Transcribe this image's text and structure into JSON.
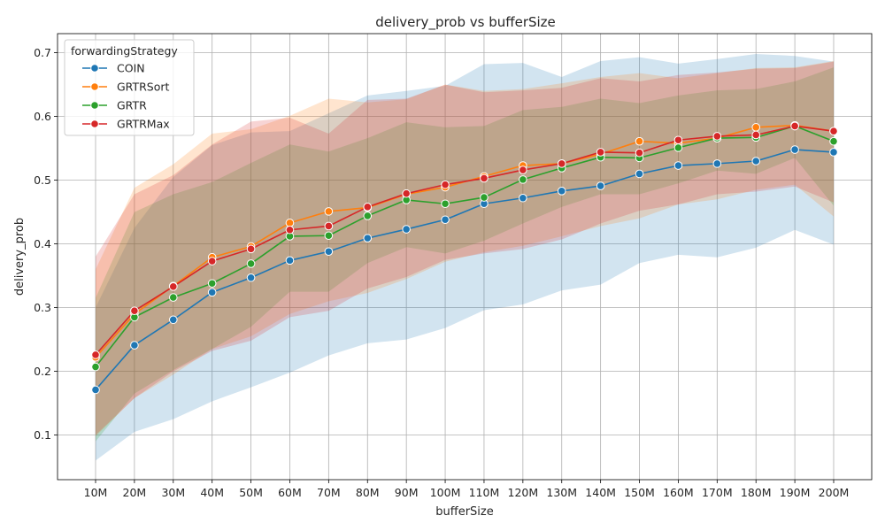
{
  "chart_data": {
    "type": "line",
    "title": "delivery_prob vs bufferSize",
    "xlabel": "bufferSize",
    "ylabel": "delivery_prob",
    "categories": [
      "10M",
      "20M",
      "30M",
      "40M",
      "50M",
      "60M",
      "70M",
      "80M",
      "90M",
      "100M",
      "110M",
      "120M",
      "130M",
      "140M",
      "150M",
      "160M",
      "170M",
      "180M",
      "190M",
      "200M"
    ],
    "ylim": [
      0.03,
      0.73
    ],
    "yticks": [
      0.1,
      0.2,
      0.3,
      0.4,
      0.5,
      0.6,
      0.7
    ],
    "grid": true,
    "legend": {
      "title": "forwardingStrategy",
      "placement": "top-left"
    },
    "series": [
      {
        "name": "COIN",
        "color": "#1f77b4",
        "values": [
          0.171,
          0.241,
          0.281,
          0.324,
          0.347,
          0.374,
          0.388,
          0.409,
          0.423,
          0.438,
          0.463,
          0.472,
          0.483,
          0.491,
          0.51,
          0.523,
          0.526,
          0.53,
          0.548,
          0.544
        ],
        "ci_low": [
          0.06,
          0.105,
          0.125,
          0.153,
          0.175,
          0.198,
          0.225,
          0.244,
          0.25,
          0.268,
          0.296,
          0.305,
          0.327,
          0.336,
          0.37,
          0.383,
          0.379,
          0.394,
          0.422,
          0.399
        ],
        "ci_high": [
          0.3,
          0.425,
          0.505,
          0.555,
          0.575,
          0.577,
          0.605,
          0.633,
          0.64,
          0.648,
          0.682,
          0.684,
          0.662,
          0.687,
          0.693,
          0.683,
          0.69,
          0.698,
          0.695,
          0.686
        ]
      },
      {
        "name": "GRTRSort",
        "color": "#ff7f0e",
        "values": [
          0.222,
          0.29,
          0.334,
          0.379,
          0.396,
          0.433,
          0.451,
          0.457,
          0.478,
          0.489,
          0.506,
          0.523,
          0.526,
          0.541,
          0.561,
          0.558,
          0.566,
          0.583,
          0.586,
          0.577
        ],
        "ci_low": [
          0.098,
          0.158,
          0.195,
          0.235,
          0.255,
          0.29,
          0.31,
          0.323,
          0.345,
          0.372,
          0.387,
          0.397,
          0.412,
          0.428,
          0.44,
          0.462,
          0.47,
          0.485,
          0.493,
          0.443
        ],
        "ci_high": [
          0.36,
          0.488,
          0.525,
          0.573,
          0.58,
          0.601,
          0.628,
          0.622,
          0.627,
          0.65,
          0.64,
          0.643,
          0.652,
          0.662,
          0.668,
          0.66,
          0.668,
          0.676,
          0.677,
          0.687
        ]
      },
      {
        "name": "GRTR",
        "color": "#2ca02c",
        "values": [
          0.207,
          0.285,
          0.316,
          0.338,
          0.369,
          0.412,
          0.413,
          0.444,
          0.469,
          0.463,
          0.473,
          0.501,
          0.519,
          0.536,
          0.535,
          0.551,
          0.566,
          0.567,
          0.585,
          0.561
        ],
        "ci_low": [
          0.09,
          0.165,
          0.202,
          0.235,
          0.27,
          0.325,
          0.325,
          0.37,
          0.395,
          0.385,
          0.405,
          0.432,
          0.458,
          0.478,
          0.478,
          0.495,
          0.515,
          0.51,
          0.535,
          0.46
        ],
        "ci_high": [
          0.315,
          0.45,
          0.478,
          0.497,
          0.527,
          0.556,
          0.545,
          0.566,
          0.591,
          0.583,
          0.585,
          0.61,
          0.615,
          0.628,
          0.621,
          0.633,
          0.641,
          0.643,
          0.655,
          0.677
        ]
      },
      {
        "name": "GRTRMax",
        "color": "#d62728",
        "values": [
          0.226,
          0.295,
          0.333,
          0.373,
          0.392,
          0.422,
          0.428,
          0.458,
          0.479,
          0.493,
          0.503,
          0.516,
          0.526,
          0.544,
          0.543,
          0.563,
          0.569,
          0.571,
          0.585,
          0.577
        ],
        "ci_low": [
          0.1,
          0.158,
          0.2,
          0.232,
          0.248,
          0.285,
          0.295,
          0.33,
          0.348,
          0.375,
          0.385,
          0.392,
          0.407,
          0.432,
          0.452,
          0.462,
          0.478,
          0.482,
          0.49,
          0.465
        ],
        "ci_high": [
          0.38,
          0.478,
          0.508,
          0.556,
          0.592,
          0.598,
          0.573,
          0.626,
          0.628,
          0.65,
          0.638,
          0.641,
          0.645,
          0.66,
          0.655,
          0.665,
          0.669,
          0.675,
          0.676,
          0.686
        ]
      }
    ]
  }
}
